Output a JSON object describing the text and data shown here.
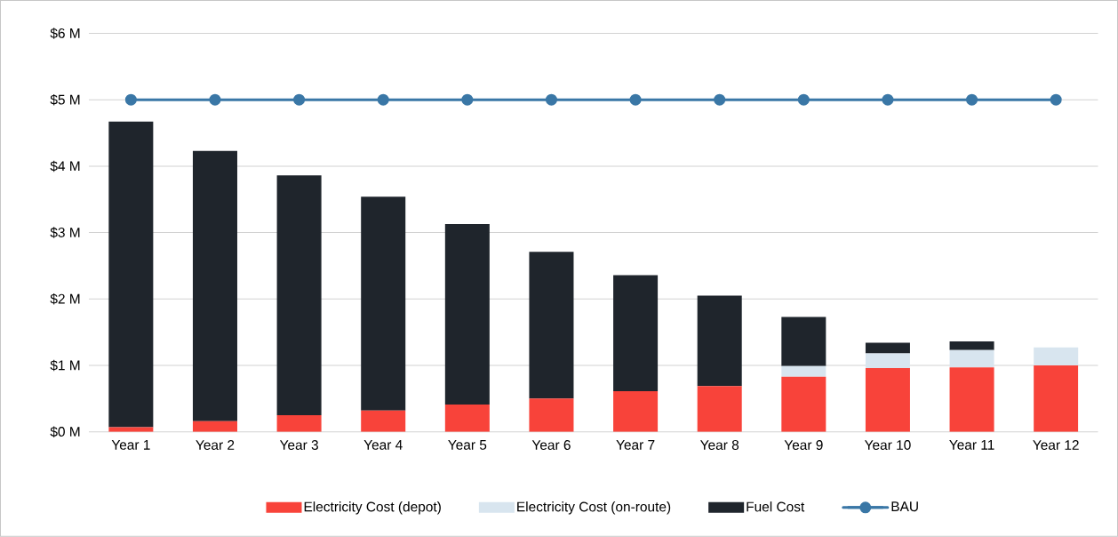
{
  "chart_data": {
    "type": "bar",
    "stacked": true,
    "categories": [
      "Year 1",
      "Year 2",
      "Year 3",
      "Year 4",
      "Year 5",
      "Year 6",
      "Year 7",
      "Year 8",
      "Year 9",
      "Year 10",
      "Year 11",
      "Year 12"
    ],
    "series": [
      {
        "name": "Electricity Cost (depot)",
        "color": "#f8433a",
        "values": [
          0.07,
          0.16,
          0.25,
          0.32,
          0.41,
          0.5,
          0.61,
          0.69,
          0.83,
          0.96,
          0.97,
          1.0
        ]
      },
      {
        "name": "Electricity Cost (on-route)",
        "color": "#d8e5ef",
        "values": [
          0,
          0,
          0,
          0,
          0,
          0,
          0,
          0,
          0.16,
          0.22,
          0.26,
          0.27
        ]
      },
      {
        "name": "Fuel Cost",
        "color": "#1f252c",
        "values": [
          4.6,
          4.07,
          3.61,
          3.22,
          2.72,
          2.21,
          1.75,
          1.36,
          0.74,
          0.16,
          0.13,
          0
        ]
      },
      {
        "name": "BAU",
        "type": "line",
        "color": "#3a77a6",
        "marker": "circle",
        "values": [
          5,
          5,
          5,
          5,
          5,
          5,
          5,
          5,
          5,
          5,
          5,
          5
        ]
      }
    ],
    "ylim": [
      0,
      6
    ],
    "yticks": [
      {
        "value": 0,
        "label": "$0 M"
      },
      {
        "value": 1,
        "label": "$1 M"
      },
      {
        "value": 2,
        "label": "$2 M"
      },
      {
        "value": 3,
        "label": "$3 M"
      },
      {
        "value": 4,
        "label": "$4 M"
      },
      {
        "value": 5,
        "label": "$5 M"
      },
      {
        "value": 6,
        "label": "$6 M"
      }
    ],
    "grid": "y",
    "legend": "bottom"
  }
}
